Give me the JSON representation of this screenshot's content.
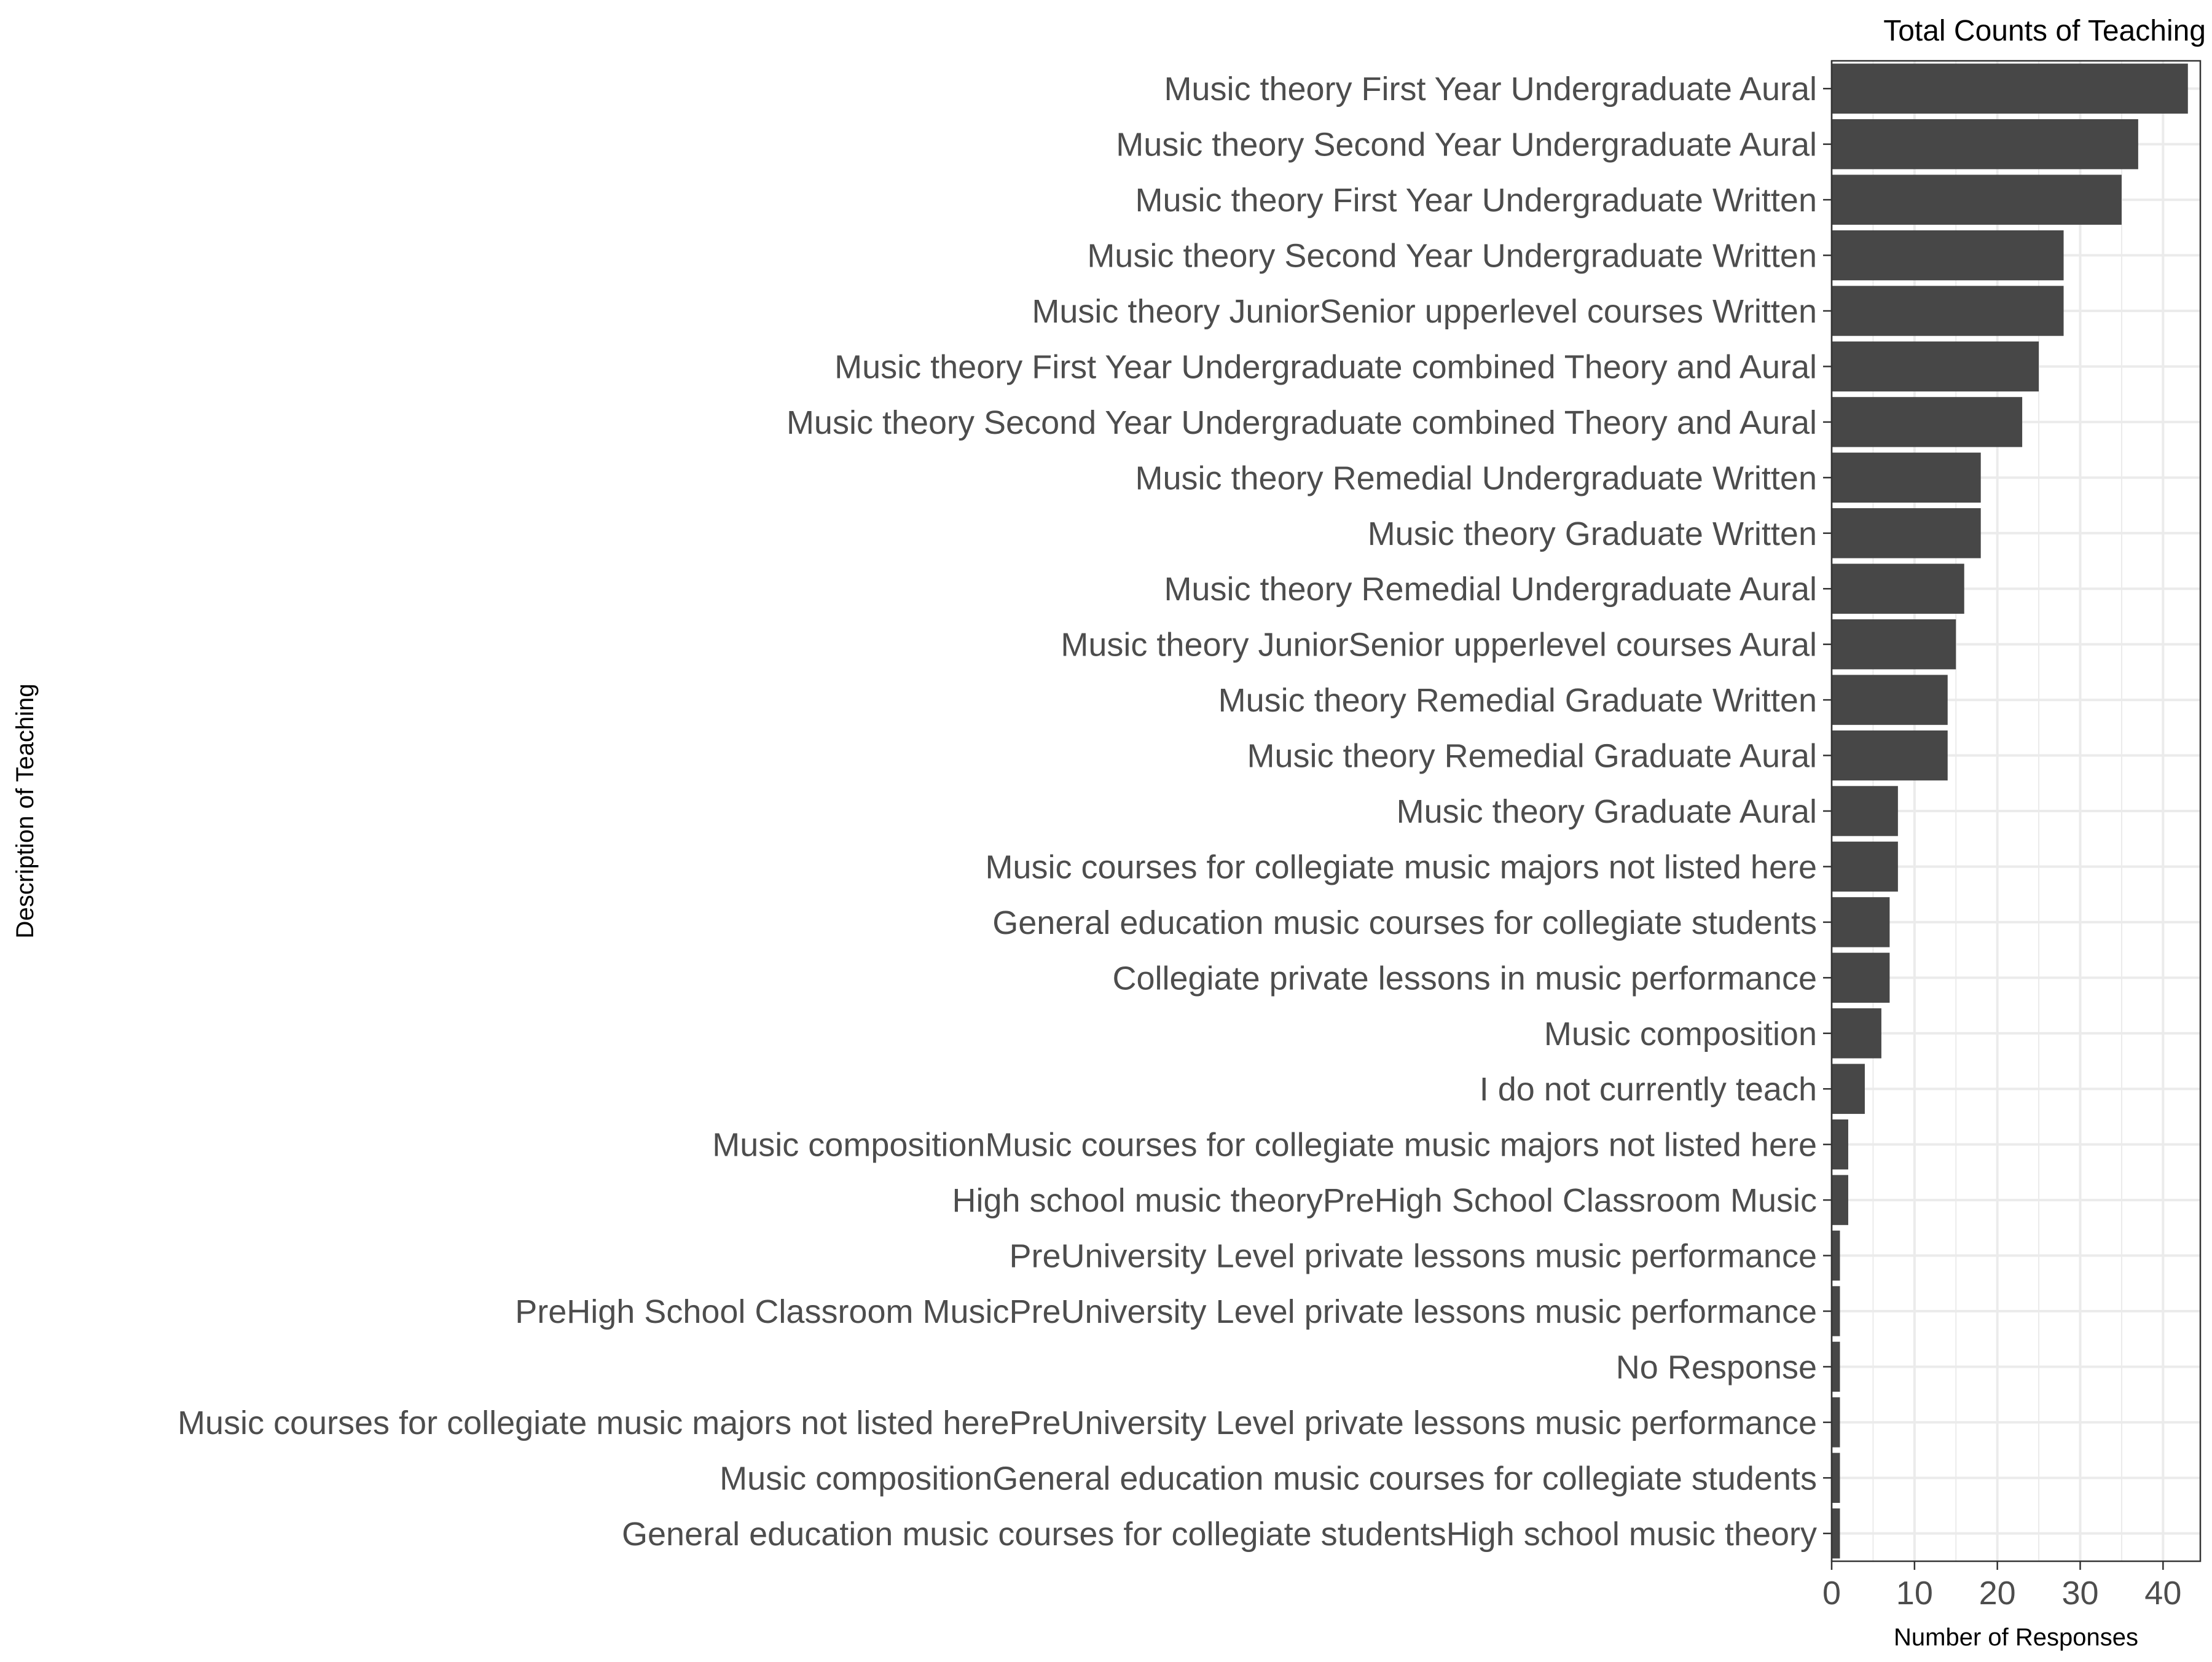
{
  "chart_data": {
    "type": "bar",
    "orientation": "horizontal",
    "title": "Total Counts of Teaching",
    "xlabel": "Number of Responses",
    "ylabel": "Description of Teaching",
    "xlim": [
      0,
      44.5
    ],
    "xticks": [
      0,
      10,
      20,
      30,
      40
    ],
    "grid": true,
    "legend": "none",
    "bar_color": "#474747",
    "grid_color": "#ebebeb",
    "categories": [
      "Music theory First Year Undergraduate Aural",
      "Music theory Second Year Undergraduate Aural",
      "Music theory First Year Undergraduate Written",
      "Music theory Second Year Undergraduate Written",
      "Music theory JuniorSenior upperlevel courses Written",
      "Music theory First Year Undergraduate combined Theory and Aural",
      "Music theory Second Year Undergraduate combined Theory and Aural",
      "Music theory Remedial Undergraduate Written",
      "Music theory Graduate Written",
      "Music theory Remedial Undergraduate Aural",
      "Music theory JuniorSenior upperlevel courses Aural",
      "Music theory Remedial Graduate Written",
      "Music theory Remedial Graduate  Aural",
      "Music theory Graduate  Aural",
      "Music courses for collegiate music majors not listed here",
      "General education music courses for collegiate students",
      "Collegiate private lessons in music performance",
      "Music composition",
      "I do not currently teach",
      "Music compositionMusic courses for collegiate music majors not listed here",
      "High school music theoryPreHigh School Classroom Music",
      "PreUniversity Level private lessons music performance",
      "PreHigh School Classroom MusicPreUniversity Level private lessons music performance",
      "No Response",
      "Music courses for collegiate music majors not listed herePreUniversity Level private lessons music performance",
      "Music compositionGeneral education music courses for collegiate students",
      "General education music courses for collegiate studentsHigh school music theory"
    ],
    "values": [
      43,
      37,
      35,
      28,
      28,
      25,
      23,
      18,
      18,
      16,
      15,
      14,
      14,
      8,
      8,
      7,
      7,
      6,
      4,
      2,
      2,
      1,
      1,
      1,
      1,
      1,
      1
    ]
  }
}
